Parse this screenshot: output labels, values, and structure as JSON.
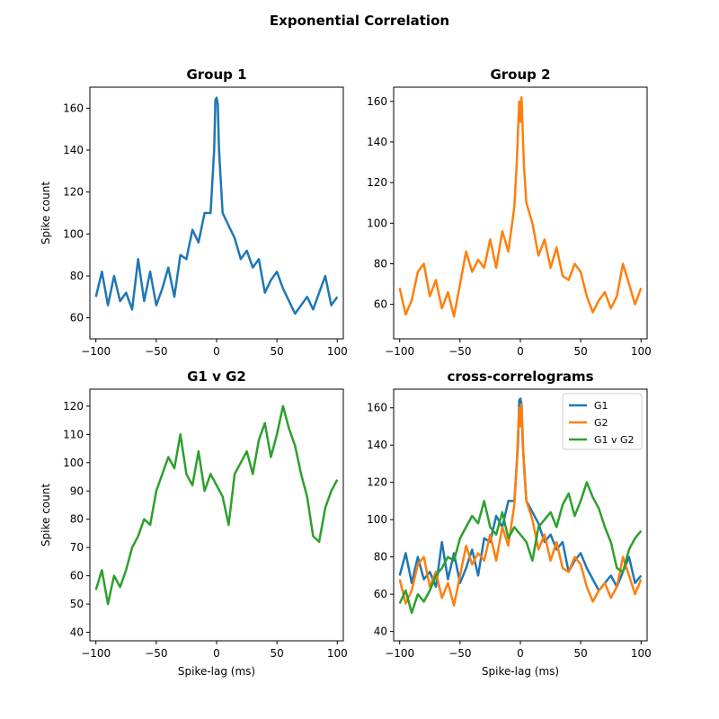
{
  "suptitle": "Exponential Correlation",
  "colors": {
    "G1": "#1f77b4",
    "G2": "#ff7f0e",
    "G1vG2": "#2ca02c"
  },
  "chart_data": [
    {
      "type": "line",
      "title": "Group 1",
      "xlabel": "",
      "ylabel": "Spike count",
      "xlim": [
        -105,
        105
      ],
      "ylim": [
        50,
        170
      ],
      "xticks": [
        -100,
        -50,
        0,
        50,
        100
      ],
      "yticks": [
        60,
        80,
        100,
        120,
        140,
        160
      ],
      "series": [
        {
          "key": "G1",
          "x": [
            -100,
            -95,
            -90,
            -85,
            -80,
            -75,
            -70,
            -65,
            -60,
            -55,
            -50,
            -45,
            -40,
            -35,
            -30,
            -25,
            -20,
            -15,
            -10,
            -5,
            -2,
            -1,
            0,
            1,
            2,
            5,
            10,
            15,
            20,
            25,
            30,
            35,
            40,
            45,
            50,
            55,
            60,
            65,
            70,
            75,
            80,
            85,
            90,
            95,
            100
          ],
          "y": [
            70,
            82,
            66,
            80,
            68,
            72,
            64,
            88,
            68,
            82,
            66,
            74,
            84,
            70,
            90,
            88,
            102,
            96,
            110,
            110,
            140,
            164,
            165,
            162,
            140,
            110,
            104,
            98,
            88,
            92,
            84,
            88,
            72,
            78,
            82,
            74,
            68,
            62,
            66,
            70,
            64,
            72,
            80,
            66,
            70
          ]
        }
      ]
    },
    {
      "type": "line",
      "title": "Group 2",
      "xlabel": "",
      "ylabel": "",
      "xlim": [
        -105,
        105
      ],
      "ylim": [
        43,
        167
      ],
      "xticks": [
        -100,
        -50,
        0,
        50,
        100
      ],
      "yticks": [
        60,
        80,
        100,
        120,
        140,
        160
      ],
      "series": [
        {
          "key": "G2",
          "x": [
            -100,
            -95,
            -90,
            -85,
            -80,
            -75,
            -70,
            -65,
            -60,
            -55,
            -50,
            -45,
            -40,
            -35,
            -30,
            -25,
            -20,
            -15,
            -10,
            -5,
            -3,
            -1,
            0,
            1,
            3,
            5,
            10,
            15,
            20,
            25,
            30,
            35,
            40,
            45,
            50,
            55,
            60,
            65,
            70,
            75,
            80,
            85,
            90,
            95,
            100
          ],
          "y": [
            68,
            55,
            62,
            76,
            80,
            64,
            72,
            58,
            66,
            54,
            70,
            86,
            76,
            82,
            78,
            92,
            78,
            96,
            86,
            108,
            130,
            160,
            150,
            162,
            128,
            110,
            100,
            84,
            92,
            78,
            88,
            74,
            72,
            80,
            76,
            64,
            56,
            62,
            66,
            58,
            64,
            80,
            70,
            60,
            68
          ]
        }
      ]
    },
    {
      "type": "line",
      "title": "G1 v G2",
      "xlabel": "Spike-lag (ms)",
      "ylabel": "Spike count",
      "xlim": [
        -105,
        105
      ],
      "ylim": [
        37,
        126
      ],
      "xticks": [
        -100,
        -50,
        0,
        50,
        100
      ],
      "yticks": [
        40,
        50,
        60,
        70,
        80,
        90,
        100,
        110,
        120
      ],
      "series": [
        {
          "key": "G1vG2",
          "x": [
            -100,
            -95,
            -90,
            -85,
            -80,
            -75,
            -70,
            -65,
            -60,
            -55,
            -50,
            -45,
            -40,
            -35,
            -30,
            -25,
            -20,
            -15,
            -10,
            -5,
            0,
            5,
            10,
            15,
            20,
            25,
            30,
            35,
            40,
            45,
            50,
            55,
            60,
            65,
            70,
            75,
            80,
            85,
            90,
            95,
            100
          ],
          "y": [
            55,
            62,
            50,
            60,
            56,
            62,
            70,
            74,
            80,
            78,
            90,
            96,
            102,
            98,
            110,
            96,
            92,
            104,
            90,
            96,
            92,
            88,
            78,
            96,
            100,
            104,
            96,
            108,
            114,
            102,
            110,
            120,
            112,
            106,
            96,
            88,
            74,
            72,
            84,
            90,
            94
          ]
        }
      ]
    },
    {
      "type": "line",
      "title": "cross-correlograms",
      "xlabel": "Spike-lag (ms)",
      "ylabel": "",
      "xlim": [
        -105,
        105
      ],
      "ylim": [
        35,
        170
      ],
      "xticks": [
        -100,
        -50,
        0,
        50,
        100
      ],
      "yticks": [
        40,
        60,
        80,
        100,
        120,
        140,
        160
      ],
      "legend": {
        "position": "top-right",
        "entries": [
          "G1",
          "G2",
          "G1 v G2"
        ]
      },
      "series": [
        {
          "key": "G1",
          "name": "G1"
        },
        {
          "key": "G2",
          "name": "G2"
        },
        {
          "key": "G1vG2",
          "name": "G1 v G2"
        }
      ]
    }
  ]
}
